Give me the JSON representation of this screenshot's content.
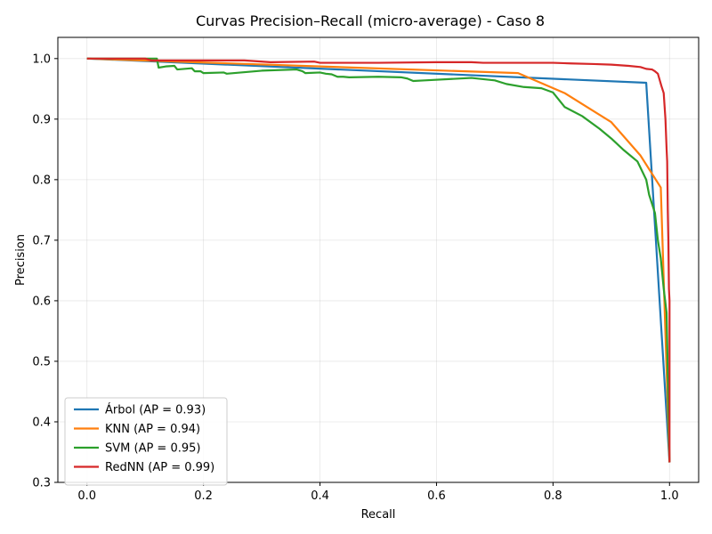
{
  "chart_data": {
    "type": "line",
    "title": "Curvas Precision–Recall (micro-average) - Caso 8",
    "xlabel": "Recall",
    "ylabel": "Precision",
    "xlim": [
      -0.05,
      1.05
    ],
    "ylim": [
      0.3,
      1.035
    ],
    "xticks": [
      0.0,
      0.2,
      0.4,
      0.6,
      0.8,
      1.0
    ],
    "xtick_labels": [
      "0.0",
      "0.2",
      "0.4",
      "0.6",
      "0.8",
      "1.0"
    ],
    "yticks": [
      0.3,
      0.4,
      0.5,
      0.6,
      0.7,
      0.8,
      0.9,
      1.0
    ],
    "ytick_labels": [
      "0.3",
      "0.4",
      "0.5",
      "0.6",
      "0.7",
      "0.8",
      "0.9",
      "1.0"
    ],
    "grid": true,
    "legend_position": "lower-left",
    "series": [
      {
        "name": "Árbol (AP = 0.93)",
        "color": "#1f77b4",
        "x": [
          0.0,
          0.96,
          1.0
        ],
        "y": [
          1.0,
          0.96,
          0.333
        ]
      },
      {
        "name": "KNN (AP = 0.94)",
        "color": "#ff7f0e",
        "x": [
          0.0,
          0.74,
          0.82,
          0.9,
          0.95,
          0.985,
          1.0
        ],
        "y": [
          1.0,
          0.976,
          0.943,
          0.895,
          0.84,
          0.787,
          0.333
        ]
      },
      {
        "name": "SVM (AP = 0.95)",
        "color": "#2ca02c",
        "x": [
          0.0,
          0.1,
          0.12,
          0.123,
          0.135,
          0.15,
          0.155,
          0.18,
          0.185,
          0.195,
          0.2,
          0.235,
          0.24,
          0.3,
          0.36,
          0.37,
          0.375,
          0.4,
          0.41,
          0.42,
          0.43,
          0.44,
          0.45,
          0.5,
          0.54,
          0.55,
          0.56,
          0.58,
          0.66,
          0.7,
          0.72,
          0.75,
          0.78,
          0.8,
          0.82,
          0.85,
          0.88,
          0.9,
          0.92,
          0.935,
          0.945,
          0.95,
          0.96,
          0.965,
          0.975,
          0.98,
          0.985,
          0.99,
          0.995,
          1.0
        ],
        "y": [
          1.0,
          1.0,
          1.0,
          0.985,
          0.987,
          0.988,
          0.982,
          0.984,
          0.979,
          0.979,
          0.976,
          0.977,
          0.975,
          0.98,
          0.982,
          0.979,
          0.976,
          0.977,
          0.975,
          0.974,
          0.97,
          0.97,
          0.969,
          0.97,
          0.969,
          0.967,
          0.963,
          0.964,
          0.968,
          0.964,
          0.958,
          0.953,
          0.951,
          0.944,
          0.92,
          0.905,
          0.884,
          0.868,
          0.85,
          0.838,
          0.83,
          0.82,
          0.8,
          0.775,
          0.745,
          0.7,
          0.67,
          0.62,
          0.58,
          0.333
        ]
      },
      {
        "name": "RedNN (AP = 0.99)",
        "color": "#d62728",
        "x": [
          0.0,
          0.1,
          0.11,
          0.27,
          0.315,
          0.39,
          0.4,
          0.5,
          0.6,
          0.66,
          0.68,
          0.8,
          0.83,
          0.87,
          0.9,
          0.93,
          0.95,
          0.96,
          0.97,
          0.975,
          0.98,
          0.983,
          0.986,
          0.99,
          0.993,
          0.995,
          0.996,
          0.997,
          0.998,
          0.999,
          1.0,
          1.0,
          1.0,
          1.0
        ],
        "y": [
          1.0,
          1.0,
          0.997,
          0.997,
          0.994,
          0.995,
          0.993,
          0.993,
          0.994,
          0.994,
          0.993,
          0.993,
          0.992,
          0.991,
          0.99,
          0.988,
          0.986,
          0.983,
          0.982,
          0.979,
          0.975,
          0.965,
          0.955,
          0.943,
          0.9,
          0.85,
          0.83,
          0.75,
          0.7,
          0.62,
          0.6,
          0.55,
          0.52,
          0.333
        ]
      }
    ]
  }
}
